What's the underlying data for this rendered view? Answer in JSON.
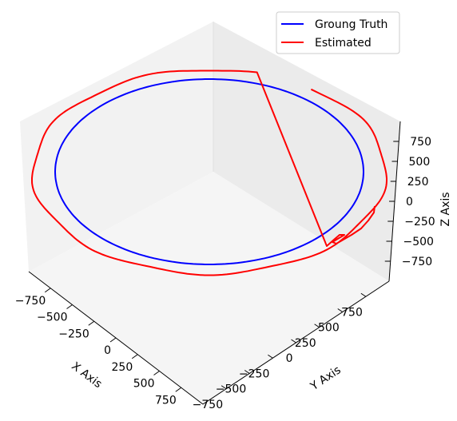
{
  "chart_data": {
    "type": "line",
    "projection": "3d",
    "title": "",
    "xlabel": "X Axis",
    "ylabel": "Y Axis",
    "zlabel": "Z Axis",
    "xlim": [
      -1000,
      1000
    ],
    "ylim": [
      -1000,
      1000
    ],
    "zlim": [
      -1000,
      1000
    ],
    "xticks": [
      -750,
      -500,
      -250,
      0,
      250,
      500,
      750
    ],
    "yticks": [
      -750,
      -500,
      -250,
      0,
      250,
      500,
      750
    ],
    "zticks": [
      -750,
      -500,
      -250,
      0,
      250,
      500,
      750
    ],
    "xtick_labels": [
      "−750",
      "−500",
      "−250",
      "0",
      "250",
      "500",
      "750"
    ],
    "ytick_labels": [
      "−750",
      "−500",
      "−250",
      "0",
      "250",
      "500",
      "750"
    ],
    "ztick_labels": [
      "−750",
      "−500",
      "−250",
      "0",
      "250",
      "500",
      "750"
    ],
    "grid": false,
    "legend_position": "top-right",
    "series": [
      {
        "name": "Groung Truth",
        "color": "#0000ff",
        "shape": "circle",
        "center": [
          0,
          0,
          0
        ],
        "radius": 900,
        "z": 0
      },
      {
        "name": "Estimated",
        "color": "#ff0000",
        "shape": "circle",
        "center": [
          0,
          0,
          0
        ],
        "radius": 1000,
        "z": 0
      }
    ]
  }
}
